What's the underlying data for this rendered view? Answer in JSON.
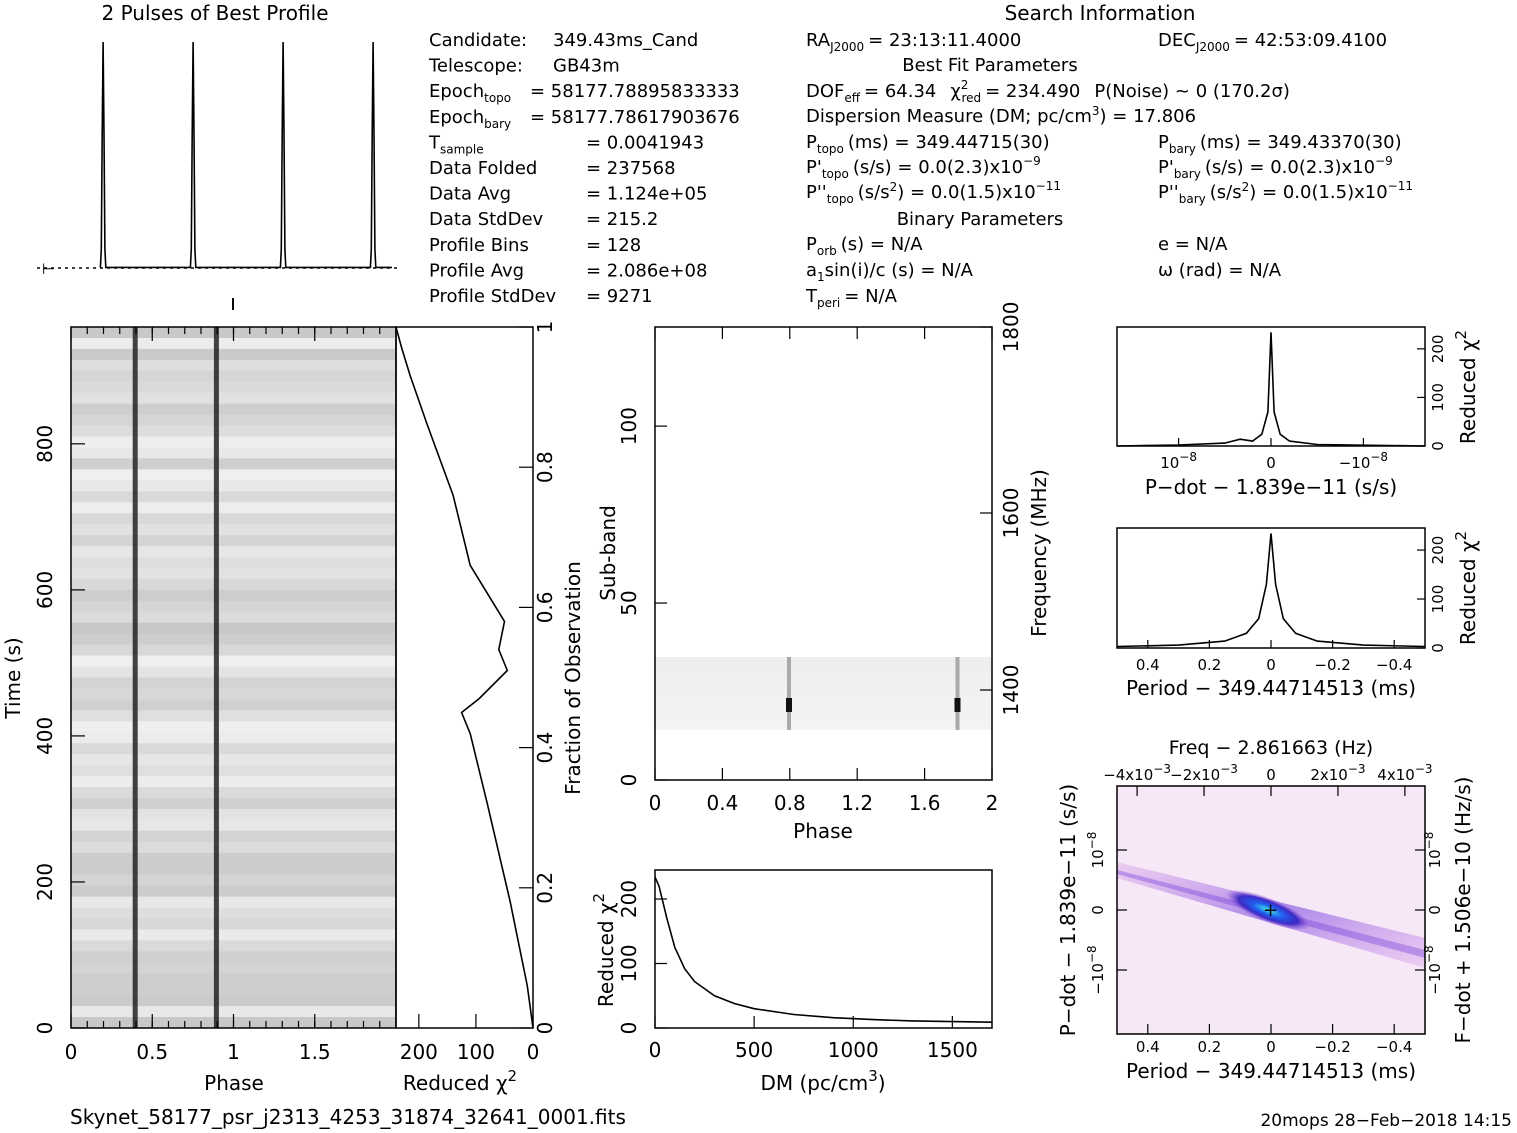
{
  "header": {
    "profile_title": "2 Pulses of Best Profile",
    "search_title": "Search Information",
    "best_fit_title": "Best Fit Parameters",
    "binary_title": "Binary Parameters"
  },
  "info_left": [
    {
      "label": "Candidate:",
      "sub": "",
      "value": "349.43ms_Cand"
    },
    {
      "label": "Telescope:",
      "sub": "",
      "value": "GB43m"
    },
    {
      "label": "Epoch",
      "sub": "topo",
      "value": "= 58177.78895833333"
    },
    {
      "label": "Epoch",
      "sub": "bary",
      "value": "= 58177.78617903676"
    },
    {
      "label": "T",
      "sub": "sample",
      "value": "=   0.0041943"
    },
    {
      "label": "Data Folded",
      "sub": "",
      "value": "=   237568"
    },
    {
      "label": "Data Avg",
      "sub": "",
      "value": "=   1.124e+05"
    },
    {
      "label": "Data StdDev",
      "sub": "",
      "value": "=   215.2"
    },
    {
      "label": "Profile Bins",
      "sub": "",
      "value": "=   128"
    },
    {
      "label": "Profile Avg",
      "sub": "",
      "value": "=   2.086e+08"
    },
    {
      "label": "Profile StdDev",
      "sub": "",
      "value": "=   9271"
    }
  ],
  "info_mid": {
    "ra": "= 23:13:11.4000",
    "ra_label": "RA",
    "ra_sub": "J2000",
    "dec": "= 42:53:09.4100",
    "dec_label": "DEC",
    "dec_sub": "J2000",
    "dof_label": "DOF",
    "dof_sub": "eff",
    "dof": "= 64.34",
    "chi_label": "χ",
    "chi_sup": "2",
    "chi_sub": "red",
    "chi": "= 234.490",
    "pnoise": "P(Noise) ~ 0    (170.2σ)",
    "dm_line": "Dispersion Measure (DM; pc/cm",
    "dm_sup": "3",
    "dm_value": ") = 17.806",
    "p_label": "P",
    "ptopo_sub": "topo",
    "ptopo": "(ms) =  349.44715(30)",
    "pbary_sub": "bary",
    "pbary": "(ms) =  349.43370(30)",
    "pd_label": "P'",
    "pdtopo_sub": "topo",
    "pdtopo": "(s/s) = 0.0(2.3)x10",
    "pdtopo_exp": "−9",
    "pdbary_sub": "bary",
    "pdbary": "(s/s) = 0.0(2.3)x10",
    "pdbary_exp": "−9",
    "pdd_label": "P''",
    "pddtopo_sub": "topo",
    "pddtopo": "(s/s",
    "pddtopo_sup": "2",
    "pddtopo_val": ") = 0.0(1.5)x10",
    "pddtopo_exp": "−11",
    "pddbary_sub": "bary",
    "pddbary": "(s/s",
    "pddbary_sup": "2",
    "pddbary_val": ") = 0.0(1.5)x10",
    "pddbary_exp": "−11",
    "porb_label": "P",
    "porb_sub": "orb",
    "porb": "(s) = N/A",
    "e": "e = N/A",
    "a1": "a",
    "a1_sub": "1",
    "a1_val": "sin(i)/c (s) = N/A",
    "omega": "ω (rad) = N/A",
    "tperi_label": "T",
    "tperi_sub": "peri",
    "tperi": "= N/A"
  },
  "footer": {
    "filename": "Skynet_58177_psr_j2313_4253_31874_32641_0001.fits",
    "stamp": "20mops 28−Feb−2018 14:15"
  },
  "colors": {
    "phase_gray": "#d8d8d8",
    "pulse": "#222222",
    "pdot_cmap_low": "#f7e6f7",
    "pdot_cmap_mid": "#3040d0",
    "pdot_cmap_high": "#40e0e0"
  },
  "chart_data": [
    {
      "type": "line",
      "name_key": "profile",
      "title": "2 Pulses of Best Profile",
      "x": [
        0,
        0.38,
        0.385,
        0.39,
        0.395,
        0.4,
        0.405,
        0.41,
        0.88,
        0.885,
        0.89,
        0.895,
        0.9,
        0.905,
        0.91,
        1.0
      ],
      "y": [
        0.02,
        0.02,
        0.1,
        0.6,
        1.0,
        0.6,
        0.1,
        0.02,
        0.02,
        0.1,
        0.6,
        1.0,
        0.6,
        0.1,
        0.02,
        0.02
      ]
    },
    {
      "type": "heatmap",
      "name_key": "time_phase",
      "xlabel": "Phase",
      "ylabel": "Time (s)",
      "right_label": "Fraction of Observation",
      "xticks": [
        "0",
        "0.5",
        "1",
        "1.5"
      ],
      "yticks": [
        "0",
        "200",
        "400",
        "600",
        "800"
      ],
      "rticks": [
        "0",
        "0.2",
        "0.4",
        "0.6",
        "0.8",
        "1"
      ],
      "pulse_phases": [
        0.395,
        0.895
      ],
      "xlim": [
        0,
        2
      ],
      "ylim": [
        0,
        960
      ]
    },
    {
      "type": "line",
      "name_key": "chi_vs_time",
      "xlabel": "Reduced χ",
      "xlabel_sup": "2",
      "xticks": [
        "200",
        "100",
        "0"
      ],
      "xlim": [
        240,
        0
      ],
      "x": [
        0,
        10,
        40,
        80,
        110,
        125,
        94,
        45,
        60,
        50,
        110,
        140,
        185,
        215,
        230,
        240
      ],
      "y": [
        0,
        0.06,
        0.18,
        0.32,
        0.42,
        0.45,
        0.47,
        0.51,
        0.54,
        0.58,
        0.66,
        0.76,
        0.86,
        0.93,
        0.97,
        1.0
      ],
      "ylim": [
        0,
        1
      ]
    },
    {
      "type": "heatmap",
      "name_key": "subband_phase",
      "xlabel": "Phase",
      "ylabel": "Sub-band",
      "right_label": "Frequency",
      "right_unit": "(MHz)",
      "xticks": [
        "0",
        "0.4",
        "0.8",
        "1.2",
        "1.6",
        "2"
      ],
      "yticks": [
        "0",
        "50",
        "100"
      ],
      "rticks": [
        "1400",
        "1600",
        "1800"
      ],
      "pulse_phases": [
        0.795,
        1.795
      ],
      "active_band": [
        15,
        35
      ],
      "xlim": [
        0,
        2
      ],
      "ylim": [
        0,
        128
      ]
    },
    {
      "type": "line",
      "name_key": "dm_chi",
      "xlabel": "DM (pc/cm",
      "xlabel_sup": "3",
      "xlabel_end": ")",
      "ylabel": "Reduced χ",
      "ylabel_sup": "2",
      "xticks": [
        "0",
        "500",
        "1000",
        "1500"
      ],
      "yticks": [
        "0",
        "100",
        "200"
      ],
      "xlim": [
        0,
        1700
      ],
      "ylim": [
        0,
        245
      ],
      "x": [
        0,
        20,
        60,
        100,
        150,
        200,
        300,
        400,
        500,
        700,
        900,
        1100,
        1300,
        1500,
        1700
      ],
      "y": [
        234,
        220,
        170,
        125,
        92,
        72,
        50,
        38,
        30,
        21,
        16,
        13,
        11,
        10,
        9
      ]
    },
    {
      "type": "line",
      "name_key": "pdot_chi",
      "xlabel": "P−dot − 1.839e−11 (s/s)",
      "ylabel": "Reduced χ",
      "ylabel_sup": "2",
      "xticks": [
        "10",
        "0",
        "−10"
      ],
      "xtick_exp": [
        "−8",
        "",
        "−8"
      ],
      "yticks": [
        "0",
        "100",
        "200"
      ],
      "ylim": [
        0,
        245
      ],
      "x": [
        -1,
        -0.6,
        -0.3,
        -0.2,
        -0.12,
        -0.06,
        -0.02,
        0,
        0.02,
        0.06,
        0.12,
        0.3,
        1
      ],
      "y": [
        0,
        2,
        6,
        14,
        10,
        24,
        70,
        234,
        70,
        24,
        10,
        3,
        0
      ]
    },
    {
      "type": "line",
      "name_key": "period_chi",
      "xlabel": "Period − 349.44714513 (ms)",
      "ylabel": "Reduced χ",
      "ylabel_sup": "2",
      "xticks": [
        "0.4",
        "0.2",
        "0",
        "−0.2",
        "−0.4"
      ],
      "yticks": [
        "0",
        "100",
        "200"
      ],
      "xlim": [
        0.5,
        -0.5
      ],
      "ylim": [
        0,
        245
      ],
      "x": [
        0.5,
        0.3,
        0.15,
        0.08,
        0.04,
        0.015,
        0,
        -0.015,
        -0.04,
        -0.08,
        -0.15,
        -0.3,
        -0.5
      ],
      "y": [
        3,
        6,
        14,
        30,
        60,
        130,
        234,
        130,
        60,
        30,
        14,
        6,
        3
      ]
    },
    {
      "type": "heatmap",
      "name_key": "ppdot",
      "title": "Freq − 2.861663 (Hz)",
      "xlabel": "Period − 349.44714513 (ms)",
      "ylabel": "P−dot − 1.839e−11 (s/s)",
      "right_label": "F−dot + 1.506e−10 (Hz/s)",
      "xticks": [
        "0.4",
        "0.2",
        "0",
        "−0.2",
        "−0.4"
      ],
      "topticks": [
        "−4x10",
        "−2x10",
        "0",
        "2x10",
        "4x10"
      ],
      "topticks_exp": [
        "−3",
        "−3",
        "",
        "−3",
        "−3"
      ],
      "yticks": [
        "10",
        "0",
        "−10"
      ],
      "yticks_exp": [
        "−8",
        "",
        "−8"
      ],
      "rticks": [
        "10",
        "0",
        "−10"
      ],
      "rticks_exp": [
        "−8",
        "",
        "−8"
      ],
      "xlim": [
        0.5,
        -0.5
      ]
    }
  ]
}
